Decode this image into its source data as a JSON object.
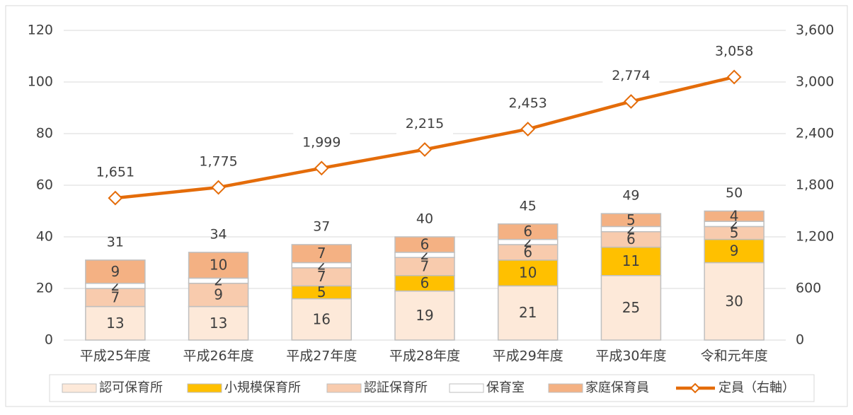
{
  "chart_data": {
    "type": "bar",
    "stacked": true,
    "categories": [
      "平成25年度",
      "平成26年度",
      "平成27年度",
      "平成28年度",
      "平成29年度",
      "平成30年度",
      "令和元年度"
    ],
    "series": [
      {
        "name": "認可保育所",
        "color": "#fde9d9",
        "values": [
          13,
          13,
          16,
          19,
          21,
          25,
          30
        ]
      },
      {
        "name": "小規模保育所",
        "color": "#ffc000",
        "values": [
          null,
          null,
          5,
          6,
          10,
          11,
          9
        ]
      },
      {
        "name": "認証保育所",
        "color": "#f8cbad",
        "values": [
          7,
          9,
          7,
          7,
          6,
          6,
          5
        ]
      },
      {
        "name": "保育室",
        "color": "#ffffff",
        "values": [
          2,
          2,
          2,
          2,
          2,
          2,
          2
        ]
      },
      {
        "name": "家庭保育員",
        "color": "#f4b183",
        "values": [
          9,
          10,
          7,
          6,
          6,
          5,
          4
        ]
      },
      {
        "name": "定員（右軸）",
        "color": "#e46c0a",
        "type": "line",
        "axis": "y2",
        "values": [
          1651,
          1775,
          1999,
          2215,
          2453,
          2774,
          3058
        ],
        "value_labels": [
          "1,651",
          "1,775",
          "1,999",
          "2,215",
          "2,453",
          "2,774",
          "3,058"
        ]
      }
    ],
    "totals": [
      31,
      34,
      37,
      40,
      45,
      49,
      50
    ],
    "ylim": [
      0,
      120
    ],
    "yticks": [
      0,
      20,
      40,
      60,
      80,
      100,
      120
    ],
    "y2lim": [
      0,
      3600
    ],
    "y2ticks": [
      0,
      600,
      {
        "value": 1200,
        "label": "1,200"
      },
      {
        "value": 1800,
        "label": "1,800"
      },
      {
        "value": 2400,
        "label": "2,400"
      },
      {
        "value": 3000,
        "label": "3,000"
      },
      {
        "value": 3600,
        "label": "3,600"
      }
    ],
    "grid": true,
    "legend": "bottom"
  }
}
